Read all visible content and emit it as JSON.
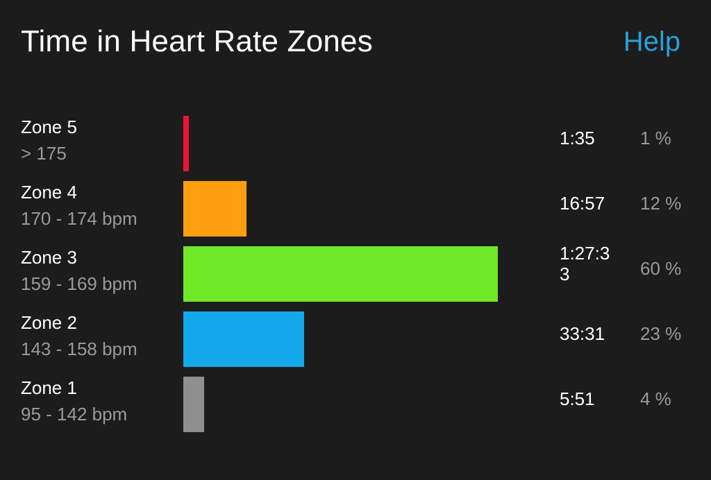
{
  "header": {
    "title": "Time in Heart Rate Zones",
    "help_label": "Help"
  },
  "zones": [
    {
      "name": "Zone 5",
      "range": "> 175",
      "time": "1:35",
      "percent_label": "1 %",
      "percent": 1,
      "color": "#e8143c"
    },
    {
      "name": "Zone 4",
      "range": "170 - 174 bpm",
      "time": "16:57",
      "percent_label": "12 %",
      "percent": 12,
      "color": "#ff9f10"
    },
    {
      "name": "Zone 3",
      "range": "159 - 169 bpm",
      "time": "1:27:33",
      "percent_label": "60 %",
      "percent": 60,
      "color": "#6fe825"
    },
    {
      "name": "Zone 2",
      "range": "143 - 158 bpm",
      "time": "33:31",
      "percent_label": "23 %",
      "percent": 23,
      "color": "#12a8ea"
    },
    {
      "name": "Zone 1",
      "range": "95 - 142 bpm",
      "time": "5:51",
      "percent_label": "4 %",
      "percent": 4,
      "color": "#8f8f8f"
    }
  ]
}
